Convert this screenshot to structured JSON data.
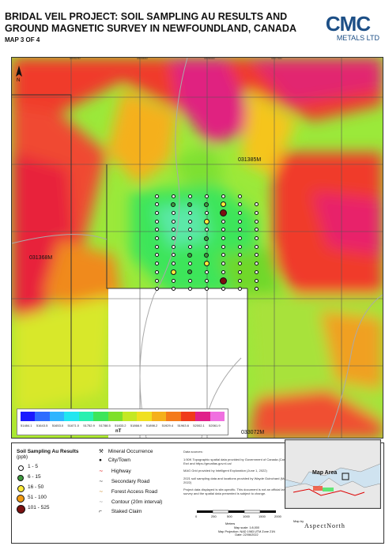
{
  "header": {
    "title": "BRIDAL VEIL PROJECT: SOIL SAMPLING AU RESULTS AND GROUND MAGNETIC SURVEY IN NEWFOUNDLAND, CANADA",
    "subtitle": "MAP 3 OF 4"
  },
  "logo": {
    "main": "CMC",
    "sub": "METALS LTD"
  },
  "map": {
    "claims": [
      "031385M",
      "031368M",
      "033072M"
    ],
    "top_ticks": [
      "4905200",
      "4905800",
      "4906400",
      "4907000"
    ],
    "left_ticks": [
      "5347400",
      "5347000",
      "5346600",
      "5346200",
      "5345800"
    ],
    "colorbar": {
      "unit": "nT",
      "labels": [
        "51484.1",
        "51643.5",
        "51653.0",
        "51671.0",
        "51752.9",
        "51788.5",
        "51833.2",
        "51866.9",
        "51898.2",
        "51929.4",
        "51963.6",
        "52002.1",
        "52061.9"
      ],
      "colors": [
        "#1a1aff",
        "#2e6cff",
        "#2fb5ff",
        "#22e6f0",
        "#28f0b0",
        "#3ee55a",
        "#7ee02a",
        "#c4e824",
        "#f0e020",
        "#f5b01a",
        "#f47a1a",
        "#f03a1a",
        "#e0208a",
        "#f070e0"
      ]
    }
  },
  "legend": {
    "title": "Soil Sampling Au Results",
    "unit": "(ppb)",
    "classes": [
      {
        "label": "1 - 5",
        "color": "#ffffff",
        "size": 5
      },
      {
        "label": "6 - 15",
        "color": "#3f9b3f",
        "size": 6
      },
      {
        "label": "16 - 50",
        "color": "#ffeb3b",
        "size": 7
      },
      {
        "label": "51 - 100",
        "color": "#f39c12",
        "size": 8
      },
      {
        "label": "101 - 525",
        "color": "#7b1010",
        "size": 9
      }
    ],
    "symbols": [
      "Mineral Occurrence",
      "City/Town",
      "Highway",
      "Secondary Road",
      "Forest Access Road",
      "Contour (20m interval)",
      "Staked Claim"
    ],
    "sources_title": "Data sources:",
    "sources": [
      "1:50K Topographic spatial data provided by Government of Canada (Canvec), Esri and https://geoatlas.gov.nl.ca/",
      "MAG Grid provided by Intelligent Exploration (June 1, 2022)",
      "2021 soil sampling data and locations provided by Wayde Guinchard (May 30, 2022)",
      "Project data displayed is site-specific. This document is not an official land survey and the spatial data presented is subject to change."
    ],
    "scale_labels": [
      "0",
      "250",
      "500",
      "1000",
      "1500",
      "2000"
    ],
    "scale_unit": "Meters",
    "scale_notes": [
      "Map scale: 1:8,000",
      "Map Projection: NAD 1983 UTM Zone 21N",
      "Date: 22/06/2022"
    ],
    "inset_label": "Map Area",
    "by_label": "Map by",
    "by_company": "AspectNorth"
  },
  "samples": {
    "rows": [
      [
        1,
        1,
        1,
        1,
        1,
        1
      ],
      [
        1,
        2,
        2,
        2,
        3,
        1,
        1
      ],
      [
        1,
        1,
        1,
        1,
        5,
        1,
        1
      ],
      [
        1,
        1,
        1,
        3,
        1,
        1,
        1
      ],
      [
        1,
        1,
        1,
        1,
        1,
        1,
        1
      ],
      [
        1,
        1,
        1,
        2,
        1,
        1,
        1
      ],
      [
        1,
        1,
        1,
        1,
        1,
        1,
        1
      ],
      [
        1,
        1,
        2,
        2,
        1,
        1,
        1
      ],
      [
        1,
        1,
        1,
        3,
        1,
        1,
        1
      ],
      [
        1,
        3,
        2,
        1,
        1,
        1,
        1
      ],
      [
        1,
        1,
        1,
        1,
        5,
        1,
        1
      ],
      [
        1,
        1,
        1,
        1,
        1,
        1,
        1
      ]
    ]
  }
}
